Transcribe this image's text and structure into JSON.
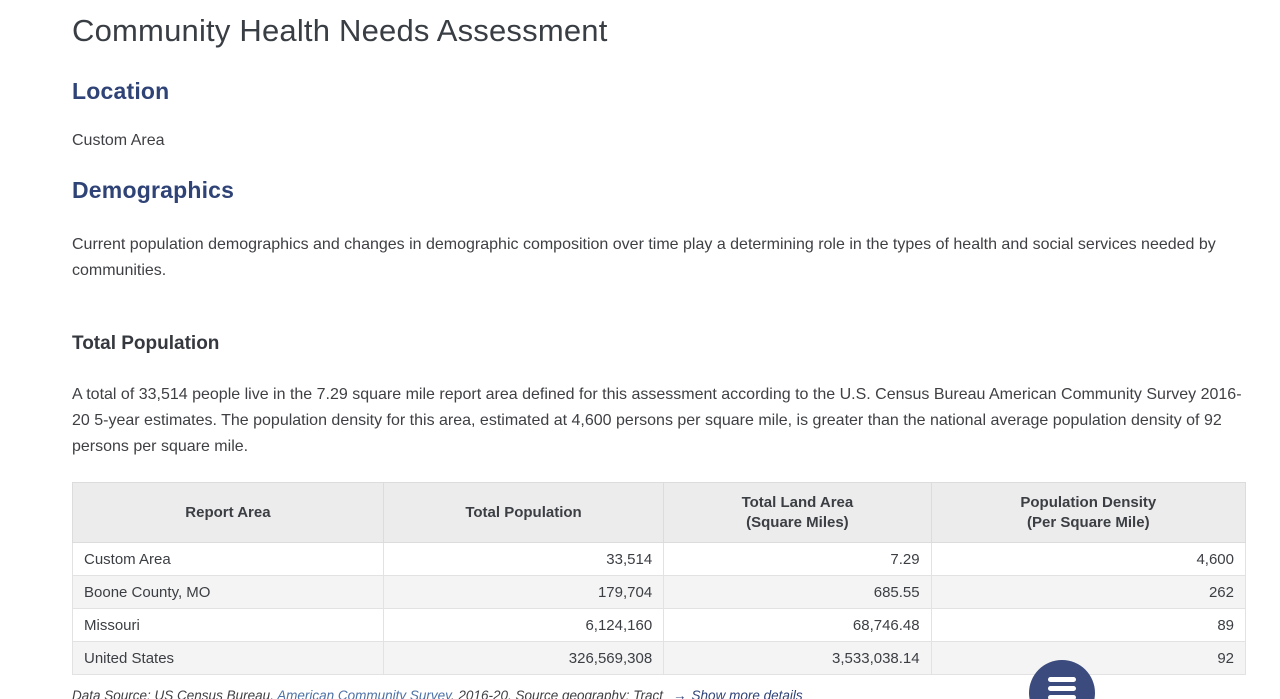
{
  "page": {
    "title": "Community Health Needs Assessment"
  },
  "location": {
    "heading": "Location",
    "value": "Custom Area"
  },
  "demographics": {
    "heading": "Demographics",
    "intro": "Current population demographics and changes in demographic composition over time play a determining role in the types of health and social services needed by communities."
  },
  "total_population": {
    "heading": "Total Population",
    "summary": "A total of 33,514 people live in the 7.29 square mile report area defined for this assessment according to the U.S. Census Bureau American Community Survey 2016-20 5-year estimates. The population density for this area, estimated at 4,600 persons per square mile, is greater than the national average population density of 92 persons per square mile."
  },
  "table": {
    "columns": [
      {
        "line1": "Report Area",
        "line2": ""
      },
      {
        "line1": "Total Population",
        "line2": ""
      },
      {
        "line1": "Total Land Area",
        "line2": "(Square Miles)"
      },
      {
        "line1": "Population Density",
        "line2": "(Per Square Mile)"
      }
    ],
    "rows": [
      {
        "area": "Custom Area",
        "population": "33,514",
        "land_area": "7.29",
        "density": "4,600"
      },
      {
        "area": "Boone County, MO",
        "population": "179,704",
        "land_area": "685.55",
        "density": "262"
      },
      {
        "area": "Missouri",
        "population": "6,124,160",
        "land_area": "68,746.48",
        "density": "89"
      },
      {
        "area": "United States",
        "population": "326,569,308",
        "land_area": "3,533,038.14",
        "density": "92"
      }
    ]
  },
  "source_note": {
    "prefix": "Data Source: US Census Bureau, ",
    "survey_link": "American Community Survey",
    "middle": ". 2016-20. Source geography: Tract",
    "arrow": "→",
    "details_link": "Show more details"
  },
  "fab": {
    "icon": "menu-list-icon"
  },
  "colors": {
    "heading_navy": "#2f4377",
    "link_blue": "#4d72a6",
    "table_header_bg": "#ececec",
    "row_alt_bg": "#f4f4f4",
    "fab_navy": "#3b4b7e"
  }
}
